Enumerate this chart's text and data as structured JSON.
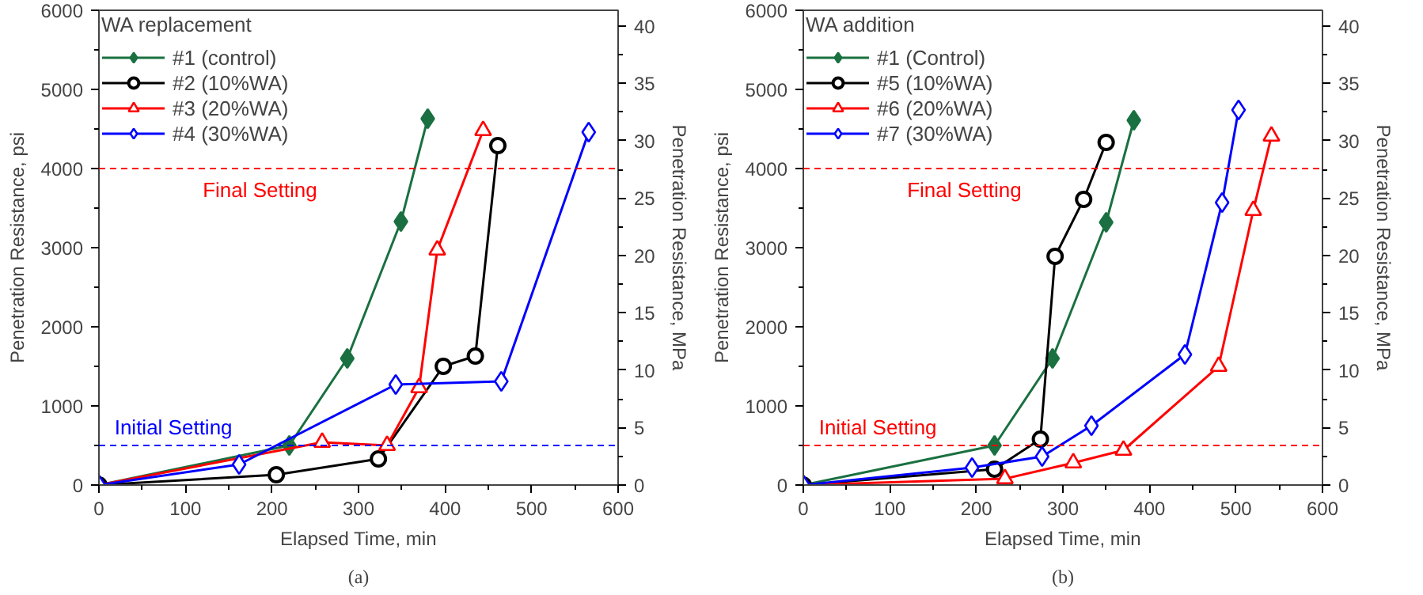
{
  "chart_data": [
    {
      "type": "line",
      "xlabel": "Elapsed Time, min",
      "ylabel": "Penetration Resistance, psi",
      "y2label": "Penetration Resistance, MPa",
      "legend_title": "WA replacement",
      "legend": "top left",
      "xlim": [
        0,
        600
      ],
      "xticks": [
        0,
        100,
        200,
        300,
        400,
        500,
        600
      ],
      "ylim": [
        0,
        6000
      ],
      "yticks": [
        0,
        1000,
        2000,
        3000,
        4000,
        5000,
        6000
      ],
      "y2lim": [
        0,
        41.37
      ],
      "y2ticks": [
        0,
        5,
        10,
        15,
        20,
        25,
        30,
        35,
        40
      ],
      "grid": false,
      "series": [
        {
          "name": "#1 (control)",
          "color": "#1a7040",
          "marker": "diamond",
          "x": [
            0,
            220,
            287,
            349,
            380
          ],
          "values": [
            0,
            500,
            1600,
            3330,
            4630
          ]
        },
        {
          "name": "#2 (10%WA)",
          "color": "#000000",
          "marker": "circle",
          "x": [
            0,
            205,
            323,
            398,
            435,
            461
          ],
          "values": [
            0,
            130,
            330,
            1500,
            1630,
            4290
          ]
        },
        {
          "name": "#3 (20%WA)",
          "color": "#ff0000",
          "marker": "triangle",
          "x": [
            0,
            258,
            333,
            370,
            391,
            444
          ],
          "values": [
            0,
            540,
            500,
            1230,
            2970,
            4480
          ]
        },
        {
          "name": "#4 (30%WA)",
          "color": "#0000ff",
          "marker": "diamond",
          "x": [
            0,
            162,
            343,
            465,
            566
          ],
          "values": [
            0,
            260,
            1270,
            1310,
            4460
          ]
        }
      ],
      "ref_lines": [
        {
          "axis": "y",
          "value": 4000,
          "label": "Final Setting",
          "color": "#ff0000",
          "line_style": "dashed"
        },
        {
          "axis": "y",
          "value": 500,
          "label": "Initial Setting",
          "color": "#0000ff",
          "line_style": "dashed"
        }
      ],
      "annotations": [
        "(a)"
      ]
    },
    {
      "type": "line",
      "xlabel": "Elapsed Time, min",
      "ylabel": "Penetration Resistance, psi",
      "y2label": "Penetration Resistance, MPa",
      "legend_title": "WA addition",
      "legend": "top left",
      "xlim": [
        0,
        600
      ],
      "xticks": [
        0,
        100,
        200,
        300,
        400,
        500,
        600
      ],
      "ylim": [
        0,
        6000
      ],
      "yticks": [
        0,
        1000,
        2000,
        3000,
        4000,
        5000,
        6000
      ],
      "y2lim": [
        0,
        41.37
      ],
      "y2ticks": [
        0,
        5,
        10,
        15,
        20,
        25,
        30,
        35,
        40
      ],
      "grid": false,
      "series": [
        {
          "name": "#1 (Control)",
          "color": "#1a7040",
          "marker": "diamond",
          "x": [
            0,
            221,
            288,
            350,
            382
          ],
          "values": [
            0,
            500,
            1600,
            3320,
            4610
          ]
        },
        {
          "name": "#5 (10%WA)",
          "color": "#000000",
          "marker": "circle",
          "x": [
            0,
            221,
            274,
            291,
            324,
            350
          ],
          "values": [
            0,
            200,
            580,
            2890,
            3610,
            4330
          ]
        },
        {
          "name": "#6 (20%WA)",
          "color": "#ff0000",
          "marker": "triangle",
          "x": [
            0,
            233,
            312,
            370,
            480,
            520,
            541
          ],
          "values": [
            0,
            80,
            280,
            440,
            1500,
            3470,
            4410
          ]
        },
        {
          "name": "#7 (30%WA)",
          "color": "#0000ff",
          "marker": "diamond",
          "x": [
            0,
            195,
            276,
            333,
            441,
            484,
            503
          ],
          "values": [
            0,
            220,
            360,
            750,
            1650,
            3570,
            4740
          ]
        }
      ],
      "ref_lines": [
        {
          "axis": "y",
          "value": 4000,
          "label": "Final Setting",
          "color": "#ff0000",
          "line_style": "dashed"
        },
        {
          "axis": "y",
          "value": 500,
          "label": "Initial Setting",
          "color": "#ff0000",
          "line_style": "dashed"
        }
      ],
      "annotations": [
        "(b)"
      ]
    }
  ]
}
